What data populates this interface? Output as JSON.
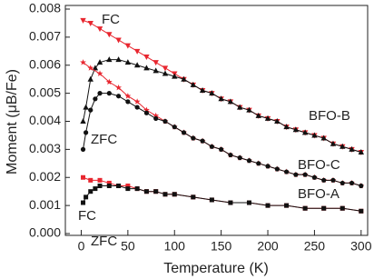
{
  "chart_data": {
    "type": "line",
    "x_label": "Temperature (K)",
    "y_label": "Moment (μB/Fe)",
    "xlim": [
      -17,
      307
    ],
    "xticks": [
      0,
      50,
      100,
      150,
      200,
      250,
      300
    ],
    "ylim": [
      0,
      0.008
    ],
    "yticks": [
      {
        "value": 0,
        "label": "0.000"
      },
      {
        "value": 0.001,
        "label": "0.001"
      },
      {
        "value": 0.002,
        "label": "0.002"
      },
      {
        "value": 0.003,
        "label": "0.003"
      },
      {
        "value": 0.004,
        "label": "0.004"
      },
      {
        "value": 0.005,
        "label": "0.005"
      },
      {
        "value": 0.006,
        "label": "0.006"
      },
      {
        "value": 0.007,
        "label": "0.007"
      },
      {
        "value": 0.008,
        "label": "0.008"
      }
    ],
    "series": [
      {
        "color": "#e8262f",
        "marker": "triangle-down",
        "x": [
          2,
          10,
          20,
          30,
          40,
          50,
          60,
          70,
          80,
          90,
          100,
          110,
          120,
          130,
          140,
          150,
          160,
          170,
          180,
          190,
          200,
          210,
          220,
          230,
          240,
          250,
          260,
          270,
          280,
          290,
          300
        ],
        "values": [
          0.0076,
          0.0075,
          0.0073,
          0.0071,
          0.0069,
          0.0067,
          0.0065,
          0.0063,
          0.0061,
          0.0059,
          0.0057,
          0.0055,
          0.0053,
          0.0051,
          0.005,
          0.0048,
          0.0047,
          0.0045,
          0.0044,
          0.0042,
          0.0041,
          0.004,
          0.0038,
          0.0037,
          0.0036,
          0.0035,
          0.0034,
          0.0032,
          0.0031,
          0.003,
          0.0029
        ]
      },
      {
        "color": "#111111",
        "marker": "triangle-up",
        "x": [
          2,
          5,
          10,
          15,
          20,
          30,
          40,
          50,
          60,
          70,
          80,
          90,
          100,
          110,
          120,
          130,
          140,
          150,
          160,
          170,
          180,
          190,
          200,
          210,
          220,
          230,
          240,
          250,
          260,
          270,
          280,
          290,
          300
        ],
        "values": [
          0.004,
          0.0045,
          0.0055,
          0.0059,
          0.0061,
          0.0062,
          0.0062,
          0.0061,
          0.006,
          0.0059,
          0.0058,
          0.0057,
          0.0056,
          0.0055,
          0.0053,
          0.0051,
          0.005,
          0.0048,
          0.0047,
          0.0045,
          0.0044,
          0.0042,
          0.0041,
          0.004,
          0.0038,
          0.0037,
          0.0036,
          0.0035,
          0.0034,
          0.0032,
          0.0031,
          0.003,
          0.0029
        ]
      },
      {
        "color": "#e8262f",
        "marker": "star",
        "x": [
          2,
          10,
          20,
          30,
          40,
          50,
          60,
          70,
          80,
          90,
          100,
          110,
          120,
          130,
          140,
          150,
          160,
          170,
          180,
          190,
          200,
          210,
          220,
          230,
          240,
          250,
          260,
          270,
          280,
          290,
          300
        ],
        "values": [
          0.0061,
          0.0059,
          0.0057,
          0.0054,
          0.0052,
          0.0049,
          0.0047,
          0.0044,
          0.0042,
          0.004,
          0.0038,
          0.0036,
          0.0034,
          0.0033,
          0.0031,
          0.003,
          0.0028,
          0.0027,
          0.0026,
          0.0025,
          0.0024,
          0.0023,
          0.0022,
          0.0021,
          0.0021,
          0.002,
          0.0019,
          0.0019,
          0.0018,
          0.0018,
          0.0017
        ]
      },
      {
        "color": "#111111",
        "marker": "circle",
        "x": [
          2,
          5,
          10,
          15,
          20,
          30,
          40,
          50,
          60,
          70,
          80,
          90,
          100,
          110,
          120,
          130,
          140,
          150,
          160,
          170,
          180,
          190,
          200,
          210,
          220,
          230,
          240,
          250,
          260,
          270,
          280,
          290,
          300
        ],
        "values": [
          0.003,
          0.0036,
          0.0044,
          0.0048,
          0.005,
          0.005,
          0.0049,
          0.0047,
          0.0045,
          0.0043,
          0.0041,
          0.004,
          0.0038,
          0.0036,
          0.0034,
          0.0033,
          0.0031,
          0.003,
          0.0028,
          0.0027,
          0.0026,
          0.0025,
          0.0024,
          0.0023,
          0.0022,
          0.0021,
          0.0021,
          0.002,
          0.0019,
          0.0019,
          0.0018,
          0.0018,
          0.0017
        ]
      },
      {
        "color": "#e8262f",
        "marker": "square",
        "x": [
          2,
          10,
          20,
          30,
          40,
          50,
          60,
          70,
          80,
          90,
          100,
          120,
          140,
          160,
          180,
          200,
          220,
          240,
          260,
          280,
          300
        ],
        "values": [
          0.002,
          0.0019,
          0.0019,
          0.0018,
          0.0017,
          0.0017,
          0.0016,
          0.0015,
          0.0015,
          0.0014,
          0.0014,
          0.0013,
          0.0012,
          0.0011,
          0.0011,
          0.001,
          0.001,
          0.0009,
          0.0009,
          0.0009,
          0.0008
        ]
      },
      {
        "color": "#111111",
        "marker": "square",
        "x": [
          2,
          5,
          10,
          15,
          20,
          30,
          40,
          50,
          60,
          70,
          80,
          90,
          100,
          120,
          140,
          160,
          180,
          200,
          220,
          240,
          260,
          280,
          300
        ],
        "values": [
          0.0011,
          0.0013,
          0.0015,
          0.0016,
          0.0017,
          0.0017,
          0.0017,
          0.0016,
          0.0016,
          0.0015,
          0.0015,
          0.0014,
          0.0014,
          0.0013,
          0.0012,
          0.0011,
          0.0011,
          0.001,
          0.001,
          0.0009,
          0.0009,
          0.0009,
          0.0008
        ]
      }
    ],
    "annotations": [
      {
        "text": "FC",
        "color": "#e8262f"
      },
      {
        "text": "ZFC",
        "color": "#111111"
      },
      {
        "text": "BFO-B",
        "color": "#111111"
      },
      {
        "text": "BFO-C",
        "color": "#111111"
      },
      {
        "text": "FC",
        "color": "#e8262f"
      },
      {
        "text": "BFO-A",
        "color": "#111111"
      },
      {
        "text": "ZFC",
        "color": "#111111"
      }
    ]
  }
}
